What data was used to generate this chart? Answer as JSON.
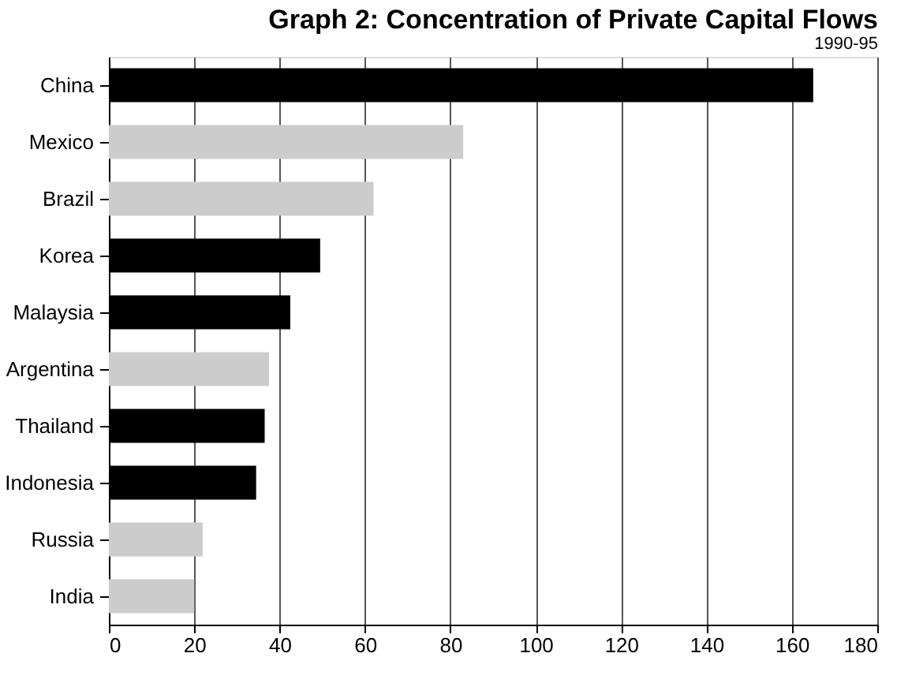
{
  "chart_data": {
    "type": "bar",
    "orientation": "horizontal",
    "title": "Graph 2: Concentration of Private Capital Flows",
    "subtitle": "1990-95",
    "categories": [
      "China",
      "Mexico",
      "Brazil",
      "Korea",
      "Malaysia",
      "Argentina",
      "Thailand",
      "Indonesia",
      "Russia",
      "India"
    ],
    "values": [
      165,
      83,
      62,
      49.5,
      42.5,
      37.5,
      36.5,
      34.5,
      22,
      20
    ],
    "colors": [
      "#000000",
      "#cccccc",
      "#cccccc",
      "#000000",
      "#000000",
      "#cccccc",
      "#000000",
      "#000000",
      "#cccccc",
      "#cccccc"
    ],
    "xlim": [
      0,
      180
    ],
    "xticks": [
      0,
      20,
      40,
      60,
      80,
      100,
      120,
      140,
      160,
      180
    ],
    "grid": "x"
  }
}
